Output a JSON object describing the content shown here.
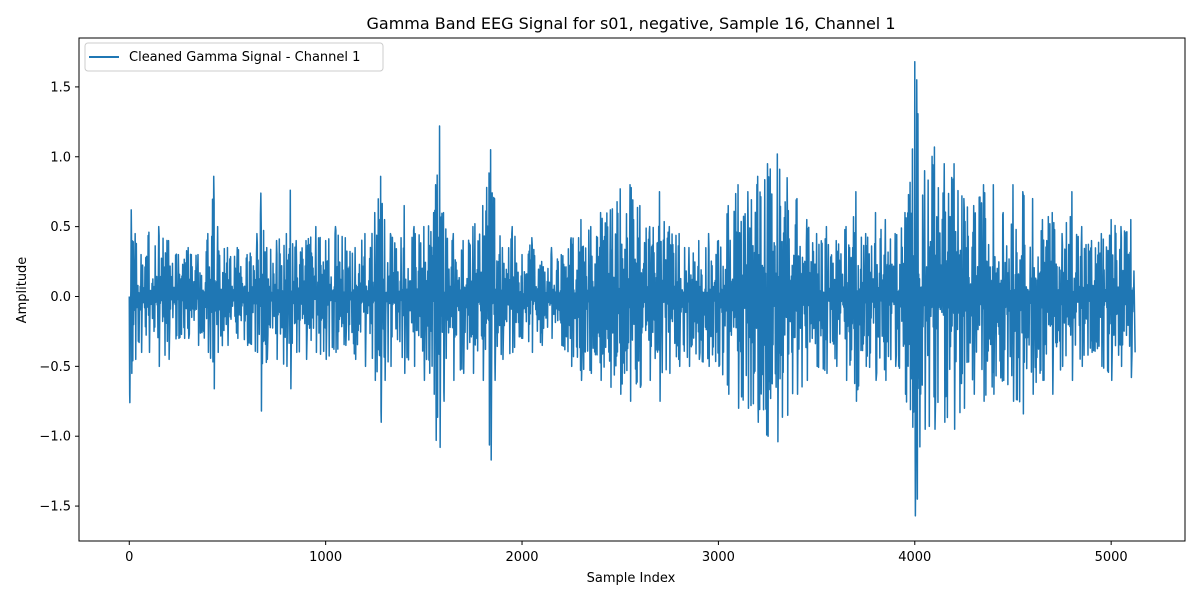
{
  "chart_data": {
    "type": "line",
    "title": "Gamma Band EEG Signal for s01, negative, Sample 16, Channel 1",
    "xlabel": "Sample Index",
    "ylabel": "Amplitude",
    "xlim": [
      -256,
      5376
    ],
    "ylim": [
      -1.75,
      1.85
    ],
    "x_ticks": [
      0,
      1000,
      2000,
      3000,
      4000,
      5000
    ],
    "y_ticks": [
      -1.5,
      -1.0,
      -0.5,
      0.0,
      0.5,
      1.0,
      1.5
    ],
    "x_tick_labels": [
      "0",
      "1000",
      "2000",
      "3000",
      "4000",
      "5000"
    ],
    "y_tick_labels": [
      "−1.5",
      "−1.0",
      "−0.5",
      "0.0",
      "0.5",
      "1.0",
      "1.5"
    ],
    "grid": false,
    "legend": {
      "position": "top-left",
      "entries": [
        "Cleaned Gamma Signal - Channel 1"
      ]
    },
    "series": [
      {
        "name": "Cleaned Gamma Signal - Channel 1",
        "color": "#1f77b4",
        "n_samples": 5120,
        "envelope_x": [
          0,
          10,
          30,
          60,
          100,
          150,
          200,
          250,
          300,
          350,
          400,
          430,
          450,
          500,
          550,
          600,
          650,
          670,
          700,
          750,
          800,
          820,
          850,
          900,
          950,
          1000,
          1050,
          1100,
          1150,
          1200,
          1250,
          1280,
          1300,
          1330,
          1400,
          1450,
          1500,
          1550,
          1560,
          1580,
          1600,
          1650,
          1700,
          1750,
          1800,
          1840,
          1860,
          1900,
          1950,
          2000,
          2050,
          2100,
          2150,
          2200,
          2250,
          2300,
          2350,
          2400,
          2450,
          2500,
          2550,
          2600,
          2650,
          2700,
          2750,
          2800,
          2850,
          2900,
          2950,
          3000,
          3050,
          3100,
          3150,
          3200,
          3250,
          3300,
          3350,
          3400,
          3450,
          3500,
          3550,
          3600,
          3650,
          3700,
          3750,
          3800,
          3850,
          3900,
          3950,
          4000,
          4010,
          4050,
          4100,
          4150,
          4200,
          4250,
          4300,
          4350,
          4400,
          4450,
          4500,
          4550,
          4600,
          4650,
          4700,
          4750,
          4800,
          4850,
          4900,
          4950,
          5000,
          5050,
          5100,
          5119
        ],
        "envelope_upper": [
          0.0,
          0.62,
          0.45,
          0.3,
          0.46,
          0.5,
          0.4,
          0.3,
          0.35,
          0.3,
          0.45,
          0.86,
          0.5,
          0.35,
          0.35,
          0.3,
          0.45,
          0.74,
          0.35,
          0.4,
          0.45,
          0.76,
          0.4,
          0.4,
          0.5,
          0.4,
          0.5,
          0.42,
          0.35,
          0.45,
          0.6,
          0.86,
          0.55,
          0.45,
          0.65,
          0.5,
          0.5,
          0.6,
          0.8,
          1.22,
          0.6,
          0.45,
          0.4,
          0.5,
          0.65,
          1.05,
          0.7,
          0.35,
          0.5,
          0.3,
          0.42,
          0.25,
          0.35,
          0.3,
          0.42,
          0.55,
          0.5,
          0.6,
          0.62,
          0.77,
          0.8,
          0.65,
          0.5,
          0.75,
          0.5,
          0.45,
          0.35,
          0.4,
          0.45,
          0.4,
          0.65,
          0.8,
          0.75,
          0.86,
          0.95,
          1.02,
          0.85,
          0.7,
          0.55,
          0.45,
          0.5,
          0.4,
          0.5,
          0.75,
          0.45,
          0.6,
          0.55,
          0.45,
          0.6,
          1.68,
          1.55,
          0.9,
          1.07,
          0.95,
          0.95,
          0.7,
          0.65,
          0.8,
          0.8,
          0.6,
          0.8,
          0.75,
          0.7,
          0.55,
          0.6,
          0.45,
          0.75,
          0.5,
          0.4,
          0.45,
          0.55,
          0.5,
          0.55,
          0.25
        ],
        "envelope_lower": [
          -0.76,
          -0.55,
          -0.45,
          -0.4,
          -0.4,
          -0.5,
          -0.45,
          -0.3,
          -0.3,
          -0.35,
          -0.4,
          -0.66,
          -0.4,
          -0.35,
          -0.3,
          -0.35,
          -0.4,
          -0.82,
          -0.45,
          -0.45,
          -0.5,
          -0.66,
          -0.4,
          -0.45,
          -0.4,
          -0.45,
          -0.4,
          -0.35,
          -0.45,
          -0.5,
          -0.6,
          -0.9,
          -0.6,
          -0.5,
          -0.55,
          -0.5,
          -0.6,
          -0.7,
          -1.03,
          -1.08,
          -0.75,
          -0.6,
          -0.55,
          -0.55,
          -0.6,
          -1.17,
          -0.6,
          -0.45,
          -0.4,
          -0.3,
          -0.4,
          -0.35,
          -0.3,
          -0.35,
          -0.5,
          -0.6,
          -0.55,
          -0.6,
          -0.65,
          -0.7,
          -0.75,
          -0.65,
          -0.6,
          -0.75,
          -0.55,
          -0.5,
          -0.5,
          -0.45,
          -0.5,
          -0.5,
          -0.7,
          -0.8,
          -0.8,
          -0.9,
          -1.0,
          -1.04,
          -0.85,
          -0.7,
          -0.6,
          -0.5,
          -0.55,
          -0.5,
          -0.6,
          -0.75,
          -0.5,
          -0.6,
          -0.6,
          -0.5,
          -0.7,
          -1.57,
          -1.45,
          -0.95,
          -0.95,
          -0.9,
          -0.95,
          -0.8,
          -0.7,
          -0.75,
          -0.7,
          -0.6,
          -0.75,
          -0.84,
          -0.7,
          -0.6,
          -0.7,
          -0.5,
          -0.6,
          -0.5,
          -0.4,
          -0.5,
          -0.6,
          -0.5,
          -0.58,
          -0.4
        ]
      }
    ]
  }
}
